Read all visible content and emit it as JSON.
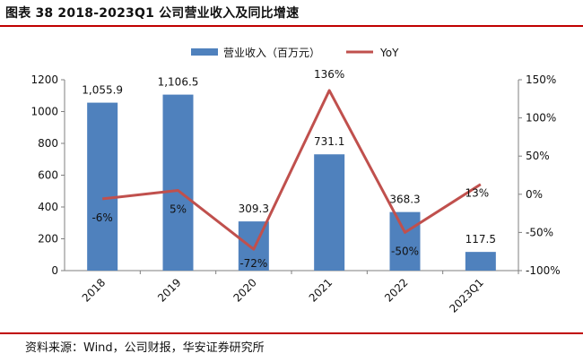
{
  "title": "图表 38 2018-2023Q1 公司营业收入及同比增速",
  "source": "资料来源：Wind，公司财报，华安证券研究所",
  "chart_data": {
    "type": "bar+line",
    "categories": [
      "2018",
      "2019",
      "2020",
      "2021",
      "2022",
      "2023Q1"
    ],
    "series": [
      {
        "name": "营业收入（百万元）",
        "type": "bar",
        "axis": "left",
        "values": [
          1055.9,
          1106.5,
          309.3,
          731.1,
          368.3,
          117.5
        ],
        "labels": [
          "1,055.9",
          "1,106.5",
          "309.3",
          "731.1",
          "368.3",
          "117.5"
        ],
        "color": "#4f81bd"
      },
      {
        "name": "YoY",
        "type": "line",
        "axis": "right",
        "values": [
          -6,
          5,
          -72,
          136,
          -50,
          13
        ],
        "labels": [
          "-6%",
          "5%",
          "-72%",
          "136%",
          "-50%",
          "13%"
        ],
        "color": "#c0504d"
      }
    ],
    "left_axis": {
      "ylim": [
        0,
        1200
      ],
      "ticks": [
        "0",
        "200",
        "400",
        "600",
        "800",
        "1000",
        "1200"
      ]
    },
    "right_axis": {
      "ylim": [
        -100,
        150
      ],
      "ticks": [
        "-100%",
        "-50%",
        "0%",
        "50%",
        "100%",
        "150%"
      ]
    },
    "legend_position": "top-center",
    "grid": false
  }
}
